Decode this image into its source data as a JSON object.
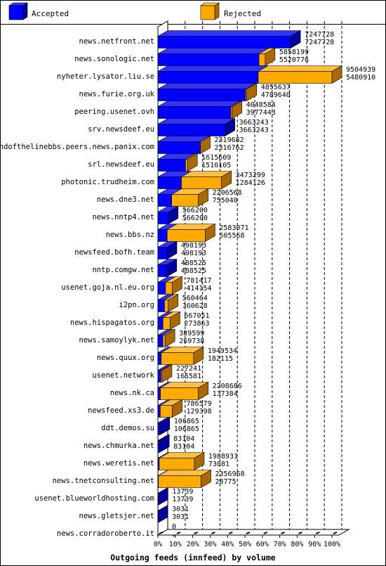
{
  "colors": {
    "accepted": "#0000ff",
    "accepted_dark": "#00009a",
    "accepted_top": "#3333ff",
    "rejected": "#ffaa00",
    "rejected_dark": "#a86a00",
    "rejected_top": "#ffc040",
    "grid": "#000000"
  },
  "legend": {
    "accepted_label": "Accepted",
    "rejected_label": "Rejected"
  },
  "chart_data": {
    "type": "bar",
    "orientation": "horizontal",
    "stacked": true,
    "xlabel": "Outgoing feeds (innfeed) by volume",
    "xlim": [
      0,
      100
    ],
    "xticks": [
      "0%",
      "10%",
      "20%",
      "30%",
      "40%",
      "50%",
      "60%",
      "70%",
      "80%",
      "90%",
      "100%"
    ],
    "max_total": 9504939,
    "grid": true,
    "legend_position": "top",
    "series": [
      {
        "name": "Accepted"
      },
      {
        "name": "Rejected"
      }
    ],
    "rows": [
      {
        "name": "news.netfront.net",
        "total": 7247728,
        "accepted": 7247728
      },
      {
        "name": "news.sonologic.net",
        "total": 5858199,
        "accepted": 5520776
      },
      {
        "name": "nyheter.lysator.liu.se",
        "total": 9504939,
        "accepted": 5480910
      },
      {
        "name": "news.furie.org.uk",
        "total": 4855637,
        "accepted": 4789640
      },
      {
        "name": "peering.usenet.ovh",
        "total": 4048584,
        "accepted": 3977443
      },
      {
        "name": "srv.newsdeef.eu",
        "total": 3663243,
        "accepted": 3663243
      },
      {
        "name": "endofthelinebbs.peers.news.panix.com",
        "total": 2319682,
        "accepted": 2316762
      },
      {
        "name": "srl.newsdeef.eu",
        "total": 1615609,
        "accepted": 1510105
      },
      {
        "name": "photonic.trudheim.com",
        "total": 3473299,
        "accepted": 1284126
      },
      {
        "name": "news.dne3.net",
        "total": 2206568,
        "accepted": 755040
      },
      {
        "name": "news.nntp4.net",
        "total": 566200,
        "accepted": 566200
      },
      {
        "name": "news.bbs.nz",
        "total": 2583071,
        "accepted": 505568
      },
      {
        "name": "newsfeed.bofh.team",
        "total": 498193,
        "accepted": 498193
      },
      {
        "name": "nntp.comgw.net",
        "total": 488525,
        "accepted": 488525
      },
      {
        "name": "usenet.goja.nl.eu.org",
        "total": 781417,
        "accepted": 414154
      },
      {
        "name": "i2pn.org",
        "total": 560464,
        "accepted": 360628
      },
      {
        "name": "news.hispagatos.org",
        "total": 667051,
        "accepted": 273863
      },
      {
        "name": "news.samoylyk.net",
        "total": 389599,
        "accepted": 269738
      },
      {
        "name": "news.quux.org",
        "total": 1949534,
        "accepted": 182115
      },
      {
        "name": "usenet.network",
        "total": 227241,
        "accepted": 165581
      },
      {
        "name": "news.nk.ca",
        "total": 2208686,
        "accepted": 137384
      },
      {
        "name": "newsfeed.xs3.de",
        "total": 786579,
        "accepted": 129398
      },
      {
        "name": "ddt.demos.su",
        "total": 106865,
        "accepted": 106865
      },
      {
        "name": "news.chmurka.net",
        "total": 83104,
        "accepted": 83104
      },
      {
        "name": "news.weretis.net",
        "total": 1988931,
        "accepted": 73081
      },
      {
        "name": "news.tnetconsulting.net",
        "total": 2356968,
        "accepted": 28775
      },
      {
        "name": "usenet.blueworldhosting.com",
        "total": 13739,
        "accepted": 13739
      },
      {
        "name": "news.gletsjer.net",
        "total": 3031,
        "accepted": 3031
      },
      {
        "name": "news.corradoroberto.it",
        "total": 0,
        "accepted": 0
      }
    ]
  }
}
